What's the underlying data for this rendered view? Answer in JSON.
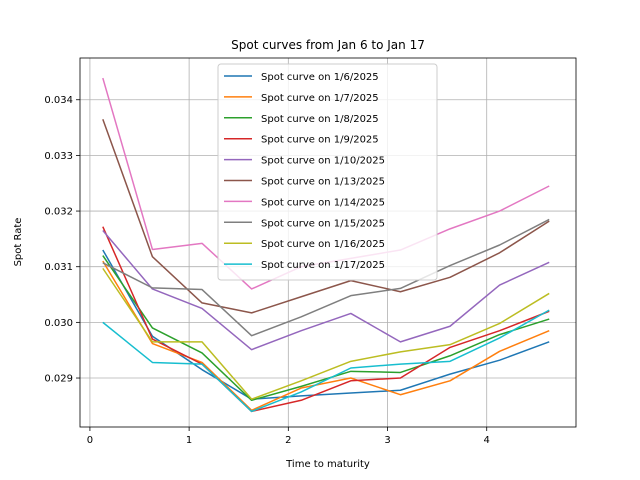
{
  "chart_data": {
    "type": "line",
    "title": "Spot curves from Jan 6 to Jan 17",
    "xlabel": "Time to maturity",
    "ylabel": "Spot Rate",
    "xlim": [
      -0.1,
      4.9
    ],
    "ylim": [
      0.02812,
      0.03475
    ],
    "xticks": [
      0,
      1,
      2,
      3,
      4
    ],
    "xtick_labels": [
      "0",
      "1",
      "2",
      "3",
      "4"
    ],
    "yticks": [
      0.029,
      0.03,
      0.031,
      0.032,
      0.033,
      0.034
    ],
    "ytick_labels": [
      "0.029",
      "0.030",
      "0.031",
      "0.032",
      "0.033",
      "0.034"
    ],
    "grid": true,
    "legend_position": "upper center",
    "x": [
      0.13,
      0.63,
      1.13,
      1.63,
      2.13,
      2.63,
      3.13,
      3.63,
      4.13,
      4.63
    ],
    "series": [
      {
        "name": "Spot curve on 1/6/2025",
        "color": "#1f77b4",
        "values": [
          0.0313,
          0.02975,
          0.02915,
          0.02862,
          0.02868,
          0.02873,
          0.02878,
          0.02907,
          0.02932,
          0.02965
        ]
      },
      {
        "name": "Spot curve on 1/7/2025",
        "color": "#ff7f0e",
        "values": [
          0.0311,
          0.02962,
          0.02928,
          0.02842,
          0.02882,
          0.029,
          0.0287,
          0.02895,
          0.02948,
          0.02985
        ]
      },
      {
        "name": "Spot curve on 1/8/2025",
        "color": "#2ca02c",
        "values": [
          0.0312,
          0.0299,
          0.02945,
          0.0286,
          0.02885,
          0.02912,
          0.0291,
          0.0294,
          0.02978,
          0.03006
        ]
      },
      {
        "name": "Spot curve on 1/9/2025",
        "color": "#d62728",
        "values": [
          0.03172,
          0.0297,
          0.02925,
          0.0284,
          0.0286,
          0.02895,
          0.029,
          0.02955,
          0.02985,
          0.0302
        ]
      },
      {
        "name": "Spot curve on 1/10/2025",
        "color": "#9467bd",
        "values": [
          0.03165,
          0.0306,
          0.03025,
          0.02951,
          0.02985,
          0.03016,
          0.02965,
          0.02993,
          0.03067,
          0.03108
        ]
      },
      {
        "name": "Spot curve on 1/13/2025",
        "color": "#8c564b",
        "values": [
          0.03365,
          0.03118,
          0.03035,
          0.03017,
          0.03046,
          0.03075,
          0.03055,
          0.03081,
          0.03125,
          0.03182
        ]
      },
      {
        "name": "Spot curve on 1/14/2025",
        "color": "#e377c2",
        "values": [
          0.03439,
          0.03131,
          0.03142,
          0.0306,
          0.031,
          0.03115,
          0.0313,
          0.03168,
          0.032,
          0.03245
        ]
      },
      {
        "name": "Spot curve on 1/15/2025",
        "color": "#7f7f7f",
        "values": [
          0.03107,
          0.03062,
          0.03059,
          0.02976,
          0.0301,
          0.03048,
          0.03061,
          0.03102,
          0.03139,
          0.03185
        ]
      },
      {
        "name": "Spot curve on 1/16/2025",
        "color": "#bcbd22",
        "values": [
          0.03097,
          0.02965,
          0.02965,
          0.02862,
          0.02895,
          0.0293,
          0.02947,
          0.0296,
          0.02998,
          0.03052
        ]
      },
      {
        "name": "Spot curve on 1/17/2025",
        "color": "#17becf",
        "values": [
          0.03,
          0.02928,
          0.02925,
          0.0284,
          0.02875,
          0.02918,
          0.02925,
          0.0293,
          0.02972,
          0.03022
        ]
      }
    ]
  }
}
